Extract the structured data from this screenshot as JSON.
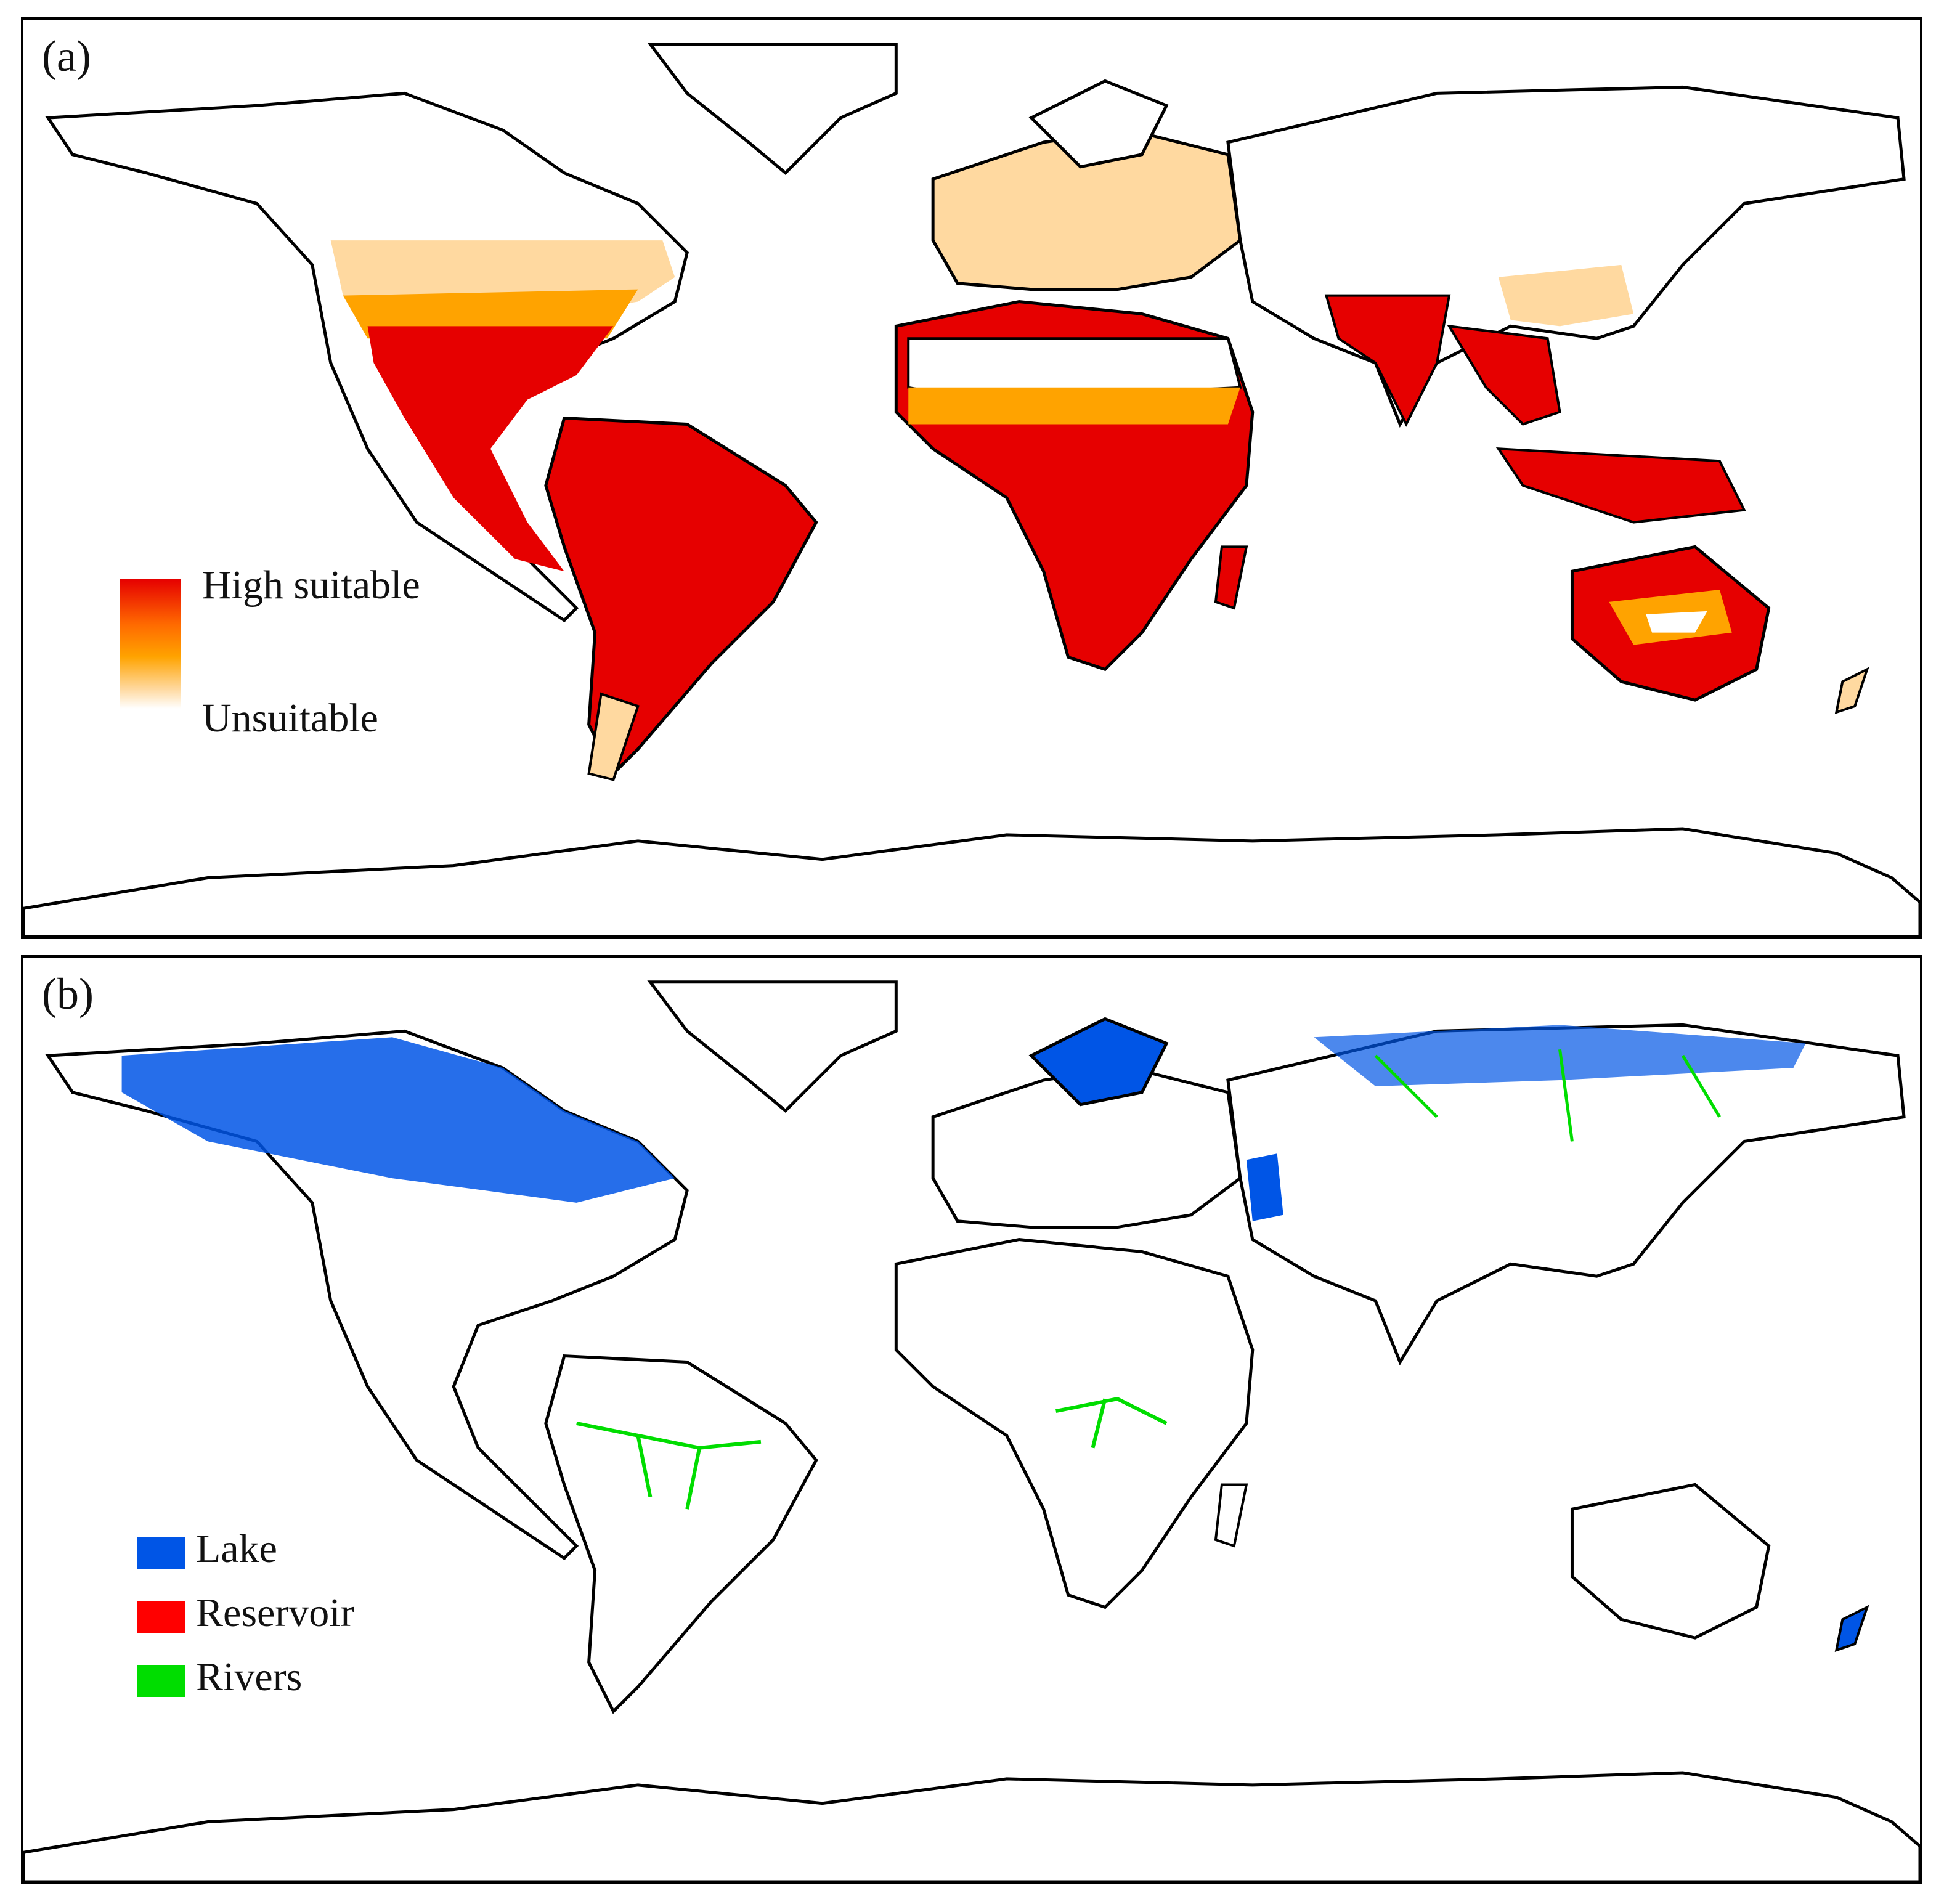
{
  "panels": [
    {
      "id": "a",
      "label": "(a)",
      "legend": {
        "type": "gradient",
        "high_label": "High suitable",
        "low_label": "Unsuitable",
        "colors": [
          "#e60000",
          "#ff6a00",
          "#ffa300",
          "#ffd9a0",
          "#ffffff"
        ]
      }
    },
    {
      "id": "b",
      "label": "(b)",
      "legend": {
        "type": "categorical",
        "items": [
          {
            "label": "Lake",
            "color": "#0055e6"
          },
          {
            "label": "Reservoir",
            "color": "#ff0000"
          },
          {
            "label": "Rivers",
            "color": "#00dd00"
          }
        ]
      }
    }
  ],
  "colors": {
    "coastline": "#000000",
    "high_suitable": "#e60000",
    "mid_suitable": "#ff8c00",
    "low_suitable": "#ffd9a0",
    "lake": "#0055e6",
    "reservoir": "#ff0000",
    "rivers": "#00dd00"
  }
}
